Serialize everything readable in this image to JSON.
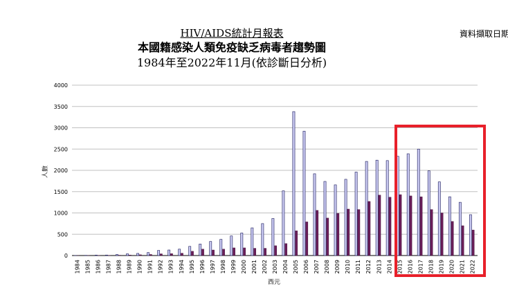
{
  "title": {
    "line1": "HIV/AIDS統計月報表",
    "line2": "本國籍感染人類免疫缺乏病毒者趨勢圖",
    "line3": "1984年至2022年11月(依診斷日分析)"
  },
  "source_note": "資料擷取日期",
  "colors": {
    "series1": "#c8c8f0",
    "series2": "#6b1e5a",
    "highlight": "#e8202a",
    "grid": "#c0c0c0"
  },
  "chart_data": {
    "type": "bar",
    "xlabel": "西元",
    "ylabel": "人數",
    "ylim": [
      0,
      4000
    ],
    "yticks": [
      0,
      500,
      1000,
      1500,
      2000,
      2500,
      3000,
      3500,
      4000
    ],
    "grid": true,
    "categories": [
      "1984",
      "1985",
      "1986",
      "1987",
      "1988",
      "1989",
      "1990",
      "1991",
      "1992",
      "1993",
      "1994",
      "1995",
      "1996",
      "1997",
      "1998",
      "1999",
      "2000",
      "2001",
      "2002",
      "2003",
      "2004",
      "2005",
      "2006",
      "2007",
      "2008",
      "2009",
      "2010",
      "2011",
      "2012",
      "2013",
      "2014",
      "2015",
      "2016",
      "2017",
      "2018",
      "2019",
      "2020",
      "2021",
      "2022"
    ],
    "series": [
      {
        "values": [
          2,
          5,
          10,
          12,
          25,
          40,
          50,
          70,
          120,
          130,
          150,
          215,
          270,
          330,
          380,
          460,
          530,
          650,
          750,
          870,
          1520,
          3380,
          2920,
          1920,
          1740,
          1660,
          1790,
          1960,
          2210,
          2240,
          2230,
          2330,
          2390,
          2500,
          1990,
          1730,
          1380,
          1250,
          960
        ]
      },
      {
        "values": [
          1,
          2,
          4,
          5,
          8,
          12,
          18,
          25,
          40,
          45,
          55,
          100,
          150,
          130,
          150,
          180,
          180,
          170,
          170,
          230,
          280,
          580,
          790,
          1060,
          880,
          990,
          1090,
          1080,
          1270,
          1420,
          1370,
          1430,
          1400,
          1380,
          1080,
          1000,
          800,
          700,
          600
        ]
      }
    ]
  }
}
